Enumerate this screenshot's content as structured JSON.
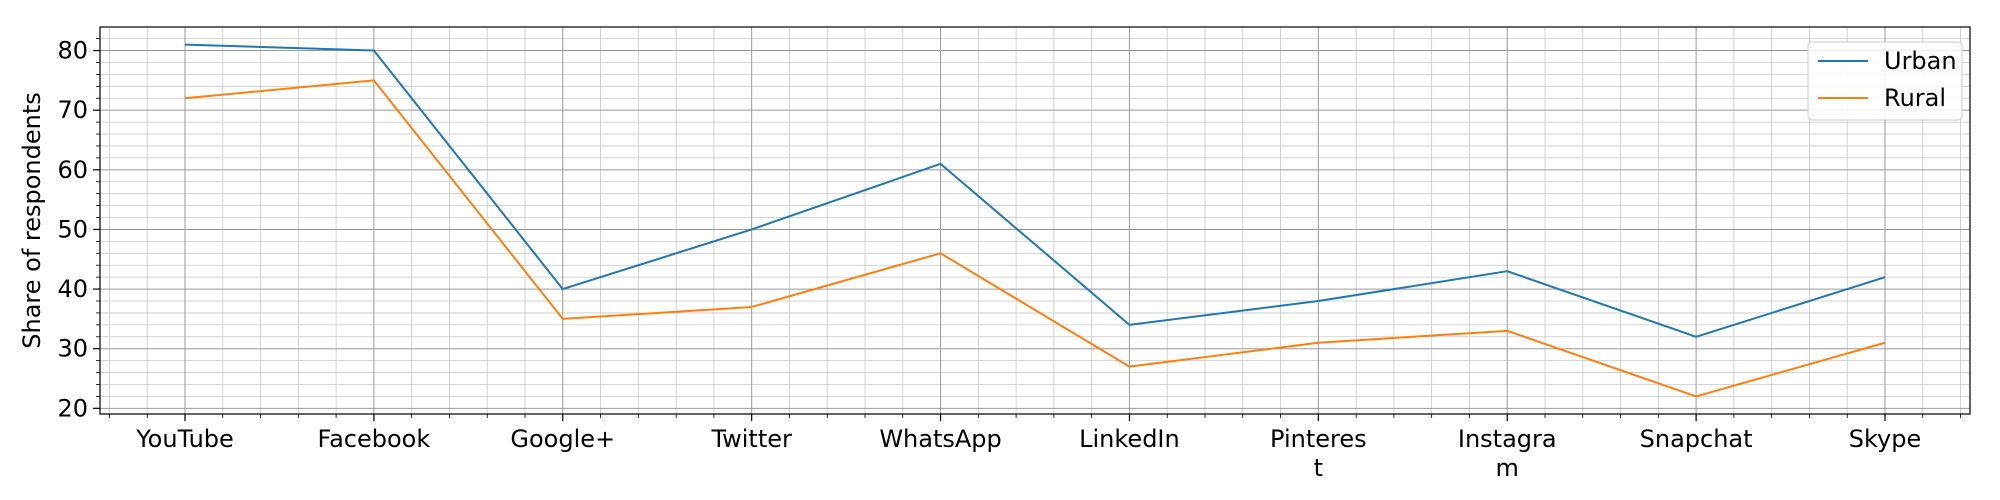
{
  "chart_data": {
    "type": "line",
    "title": "",
    "xlabel": "",
    "ylabel": "Share of respondents",
    "categories": [
      [
        "YouTube"
      ],
      [
        "Facebook"
      ],
      [
        "Google+"
      ],
      [
        "Twitter"
      ],
      [
        "WhatsApp"
      ],
      [
        "LinkedIn"
      ],
      [
        "Pinteres",
        "t"
      ],
      [
        "Instagra",
        "m"
      ],
      [
        "Snapchat"
      ],
      [
        "Skype"
      ]
    ],
    "series": [
      {
        "name": "Urban",
        "color": "#1f77b4",
        "values": [
          81,
          80,
          40,
          50,
          61,
          34,
          38,
          43,
          32,
          42
        ]
      },
      {
        "name": "Rural",
        "color": "#ff7f0e",
        "values": [
          72,
          75,
          35,
          37,
          46,
          27,
          31,
          33,
          22,
          31
        ]
      }
    ],
    "ylim": [
      19.05,
      83.95
    ],
    "yticks": [
      20,
      30,
      40,
      50,
      60,
      70,
      80
    ],
    "grid": true,
    "legend": "top-right"
  }
}
